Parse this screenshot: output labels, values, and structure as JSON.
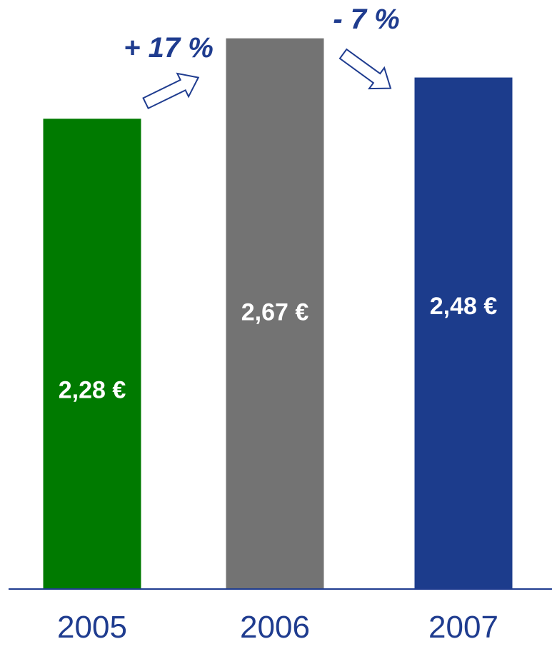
{
  "chart_data": {
    "type": "bar",
    "categories": [
      "2005",
      "2006",
      "2007"
    ],
    "values": [
      2.28,
      2.67,
      2.48
    ],
    "value_labels": [
      "2,28 €",
      "2,67 €",
      "2,48 €"
    ],
    "colors": [
      "#007a00",
      "#737373",
      "#1c3c8c"
    ],
    "ylim": [
      0,
      2.7
    ],
    "changes": [
      {
        "label": "+ 17 %",
        "direction": "up"
      },
      {
        "label": "- 7 %",
        "direction": "down"
      }
    ],
    "axis_color": "#1f3c8f",
    "label_color": "#1f3c8f",
    "grid": false,
    "legend": "none"
  }
}
